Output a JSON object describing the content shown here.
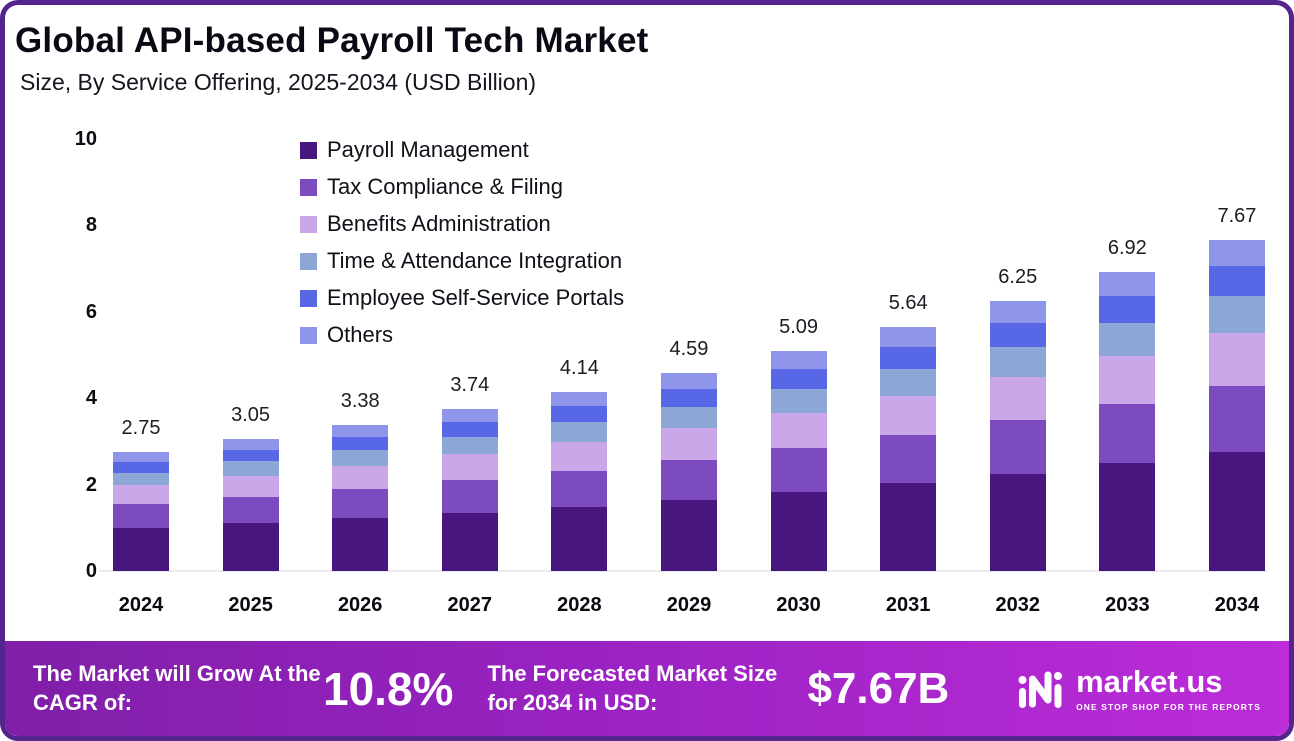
{
  "header": {
    "title": "Global API-based Payroll Tech Market",
    "subtitle": "Size, By Service Offering, 2025-2034 (USD Billion)"
  },
  "chart_data": {
    "type": "bar",
    "stacked": true,
    "title": "Global API-based Payroll Tech Market",
    "subtitle": "Size, By Service Offering, 2025-2034 (USD Billion)",
    "unit": "USD Billion",
    "categories": [
      "2024",
      "2025",
      "2026",
      "2027",
      "2028",
      "2029",
      "2030",
      "2031",
      "2032",
      "2033",
      "2034"
    ],
    "totals": [
      2.75,
      3.05,
      3.38,
      3.74,
      4.14,
      4.59,
      5.09,
      5.64,
      6.25,
      6.92,
      7.67
    ],
    "series": [
      {
        "name": "Payroll Management",
        "color": "#47177e",
        "values": [
          0.99,
          1.1,
          1.22,
          1.35,
          1.49,
          1.65,
          1.83,
          2.03,
          2.25,
          2.49,
          2.76
        ]
      },
      {
        "name": "Tax Compliance & Filing",
        "color": "#7c4bc0",
        "values": [
          0.55,
          0.61,
          0.68,
          0.75,
          0.83,
          0.92,
          1.02,
          1.13,
          1.25,
          1.38,
          1.53
        ]
      },
      {
        "name": "Benefits Administration",
        "color": "#c9a7e8",
        "values": [
          0.44,
          0.49,
          0.54,
          0.6,
          0.66,
          0.73,
          0.81,
          0.9,
          1.0,
          1.11,
          1.23
        ]
      },
      {
        "name": "Time & Attendance Integration",
        "color": "#8ca6d6",
        "values": [
          0.3,
          0.34,
          0.37,
          0.41,
          0.46,
          0.5,
          0.56,
          0.62,
          0.69,
          0.76,
          0.84
        ]
      },
      {
        "name": "Employee Self-Service Portals",
        "color": "#5767e6",
        "values": [
          0.25,
          0.27,
          0.3,
          0.34,
          0.37,
          0.41,
          0.46,
          0.51,
          0.56,
          0.62,
          0.69
        ]
      },
      {
        "name": "Others",
        "color": "#8f96ea",
        "values": [
          0.22,
          0.24,
          0.27,
          0.29,
          0.33,
          0.38,
          0.41,
          0.45,
          0.5,
          0.56,
          0.62
        ]
      }
    ],
    "ylim": [
      0,
      10
    ],
    "yticks": [
      0,
      2,
      4,
      6,
      8,
      10
    ],
    "grid": false,
    "legend_position": "top-left"
  },
  "footer": {
    "cagr_label": "The Market will Grow At the CAGR of:",
    "cagr_value": "10.8%",
    "forecast_label": "The Forecasted Market Size for 2034 in USD:",
    "forecast_value": "$7.67B",
    "brand": "market.us",
    "brand_tagline": "ONE STOP SHOP FOR THE REPORTS"
  },
  "colors": {
    "frame_border": "#54258f",
    "footer_gradient_start": "#801fa8",
    "footer_gradient_end": "#bc2cd8"
  }
}
